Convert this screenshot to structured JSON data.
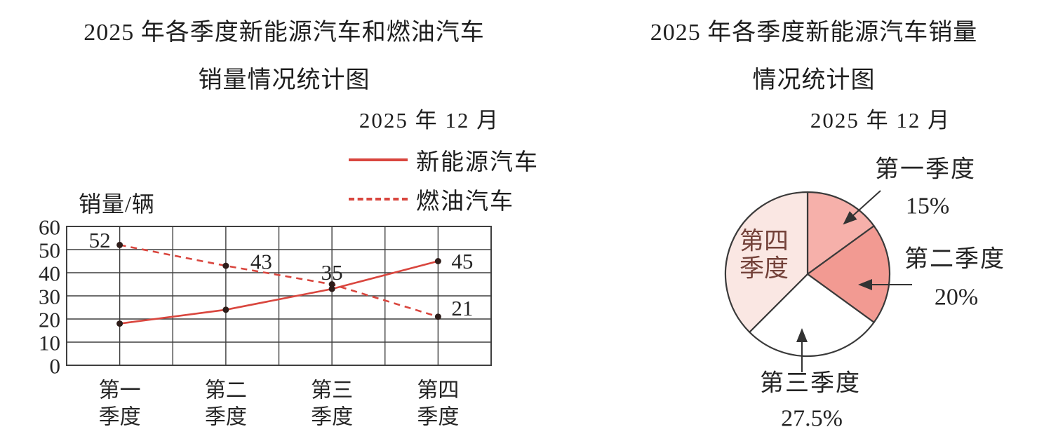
{
  "colors": {
    "background": "#ffffff",
    "line_red": "#d9463e",
    "grid": "#3f3f3f",
    "point_dot": "#2e1d1a",
    "text": "#242424",
    "pie_stroke": "#3a3a3a",
    "pie_slices": [
      "#f6b0aa",
      "#f29a92",
      "#ffffff",
      "#fae7e3"
    ],
    "pie_inside_label": "#74423a",
    "arrow": "#333333"
  },
  "chart_data": [
    {
      "type": "line",
      "title_lines": [
        "2025 年各季度新能源汽车和燃油汽车",
        "销量情况统计图"
      ],
      "date_annotation": "2025 年 12 月",
      "ylabel": "销量/辆",
      "xlabel": "",
      "categories": [
        "第一季度",
        "第二季度",
        "第三季度",
        "第四季度"
      ],
      "ylim": [
        0,
        60
      ],
      "yticks": [
        0,
        10,
        20,
        30,
        40,
        50,
        60
      ],
      "grid": true,
      "legend_position": "top-right",
      "series": [
        {
          "name": "新能源汽车",
          "style": "solid",
          "values": [
            18,
            24,
            33,
            45
          ],
          "point_labels": [
            null,
            null,
            null,
            "45"
          ]
        },
        {
          "name": "燃油汽车",
          "style": "dashed",
          "values": [
            52,
            43,
            35,
            21
          ],
          "point_labels": [
            "52",
            "43",
            "35",
            "21"
          ]
        }
      ]
    },
    {
      "type": "pie",
      "title_lines": [
        "2025 年各季度新能源汽车销量",
        "情况统计图"
      ],
      "date_annotation": "2025 年 12 月",
      "start_angle_deg": 0,
      "direction": "clockwise",
      "slices": [
        {
          "label": "第一季度",
          "pct": 15,
          "pct_label": "15%",
          "label_position": "outside"
        },
        {
          "label": "第二季度",
          "pct": 20,
          "pct_label": "20%",
          "label_position": "outside"
        },
        {
          "label": "第三季度",
          "pct": 27.5,
          "pct_label": "27.5%",
          "label_position": "outside"
        },
        {
          "label": "第四季度",
          "pct": 37.5,
          "pct_label": null,
          "label_position": "inside"
        }
      ]
    }
  ]
}
